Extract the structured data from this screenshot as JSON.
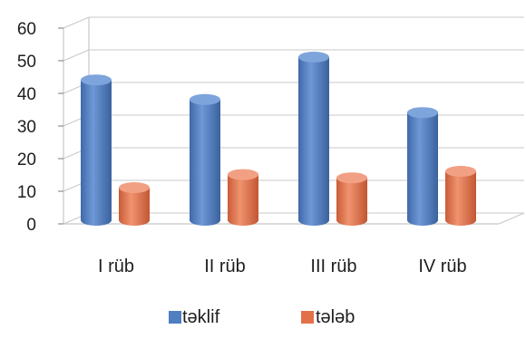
{
  "chart_data": {
    "type": "bar",
    "categories": [
      "I rüb",
      "II rüb",
      "III rüb",
      "IV rüb"
    ],
    "series": [
      {
        "name": "təklif",
        "values": [
          43,
          37,
          50,
          33
        ]
      },
      {
        "name": "tələb",
        "values": [
          10,
          14,
          13,
          15
        ]
      }
    ],
    "ylim": [
      0,
      60
    ],
    "yticks": [
      "0",
      "10",
      "20",
      "30",
      "40",
      "50",
      "60"
    ],
    "grid": true,
    "legend_position": "bottom",
    "style": "3d-cylinder"
  },
  "colors": {
    "series_1": "#4f7ec1",
    "series_2": "#e2714a",
    "grid": "#c8c8c8"
  }
}
